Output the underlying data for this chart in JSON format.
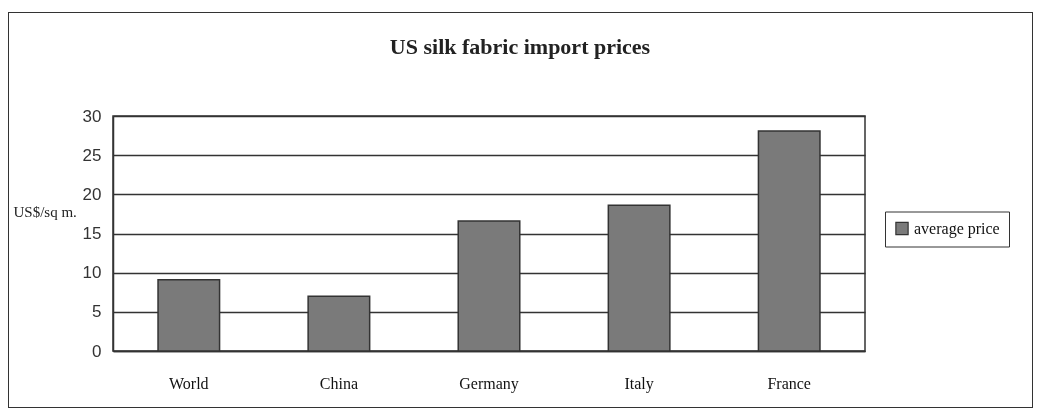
{
  "chart_data": {
    "type": "bar",
    "title": "US silk fabric import prices",
    "ylabel": "US$/sq m.",
    "categories": [
      "World",
      "China",
      "Germany",
      "Italy",
      "France"
    ],
    "series": [
      {
        "name": "average price",
        "color": "#7a7a7a",
        "values": [
          9.1,
          7.0,
          16.6,
          18.6,
          28.1
        ]
      }
    ],
    "ylim": [
      0,
      30
    ],
    "yticks": [
      0,
      5,
      10,
      15,
      20,
      25,
      30
    ],
    "grid": "y",
    "legend": "right"
  }
}
